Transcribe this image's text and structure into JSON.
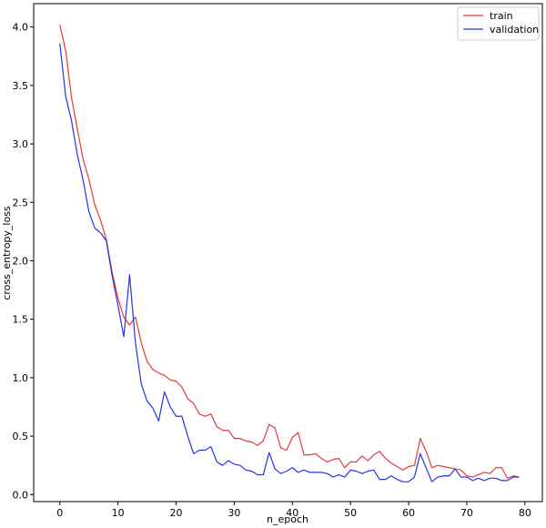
{
  "chart_data": {
    "type": "line",
    "title": "",
    "xlabel": "n_epoch",
    "ylabel": "cross_entropy_loss",
    "xlim": [
      -4.5,
      83
    ],
    "ylim": [
      -0.06,
      4.2
    ],
    "xticks": [
      0,
      10,
      20,
      30,
      40,
      50,
      60,
      70,
      80
    ],
    "yticks": [
      0.0,
      0.5,
      1.0,
      1.5,
      2.0,
      2.5,
      3.0,
      3.5,
      4.0
    ],
    "grid": false,
    "legend_position": "top-right",
    "x": [
      0,
      1,
      2,
      3,
      4,
      5,
      6,
      7,
      8,
      9,
      10,
      11,
      12,
      13,
      14,
      15,
      16,
      17,
      18,
      19,
      20,
      21,
      22,
      23,
      24,
      25,
      26,
      27,
      28,
      29,
      30,
      31,
      32,
      33,
      34,
      35,
      36,
      37,
      38,
      39,
      40,
      41,
      42,
      43,
      44,
      45,
      46,
      47,
      48,
      49,
      50,
      51,
      52,
      53,
      54,
      55,
      56,
      57,
      58,
      59,
      60,
      61,
      62,
      63,
      64,
      65,
      66,
      67,
      68,
      69,
      70,
      71,
      72,
      73,
      74,
      75,
      76,
      77,
      78,
      79
    ],
    "series": [
      {
        "name": "train",
        "color": "#e8383d",
        "values": [
          4.02,
          3.8,
          3.4,
          3.13,
          2.87,
          2.7,
          2.48,
          2.35,
          2.18,
          1.9,
          1.68,
          1.52,
          1.45,
          1.52,
          1.3,
          1.14,
          1.07,
          1.04,
          1.02,
          0.98,
          0.97,
          0.92,
          0.82,
          0.78,
          0.69,
          0.67,
          0.69,
          0.58,
          0.55,
          0.55,
          0.48,
          0.48,
          0.46,
          0.45,
          0.42,
          0.46,
          0.6,
          0.57,
          0.4,
          0.38,
          0.49,
          0.53,
          0.34,
          0.34,
          0.35,
          0.31,
          0.28,
          0.3,
          0.31,
          0.23,
          0.28,
          0.28,
          0.33,
          0.29,
          0.34,
          0.37,
          0.31,
          0.27,
          0.24,
          0.21,
          0.24,
          0.25,
          0.48,
          0.37,
          0.23,
          0.25,
          0.24,
          0.23,
          0.22,
          0.21,
          0.16,
          0.15,
          0.17,
          0.19,
          0.18,
          0.23,
          0.23,
          0.14,
          0.16,
          0.15
        ]
      },
      {
        "name": "validation",
        "color": "#2634e0",
        "values": [
          3.86,
          3.41,
          3.2,
          2.91,
          2.69,
          2.42,
          2.28,
          2.24,
          2.17,
          1.87,
          1.62,
          1.35,
          1.88,
          1.3,
          0.95,
          0.8,
          0.74,
          0.63,
          0.88,
          0.75,
          0.67,
          0.67,
          0.5,
          0.35,
          0.38,
          0.38,
          0.41,
          0.28,
          0.25,
          0.29,
          0.26,
          0.25,
          0.21,
          0.2,
          0.17,
          0.17,
          0.36,
          0.22,
          0.18,
          0.2,
          0.23,
          0.19,
          0.21,
          0.19,
          0.19,
          0.19,
          0.18,
          0.15,
          0.17,
          0.15,
          0.21,
          0.2,
          0.18,
          0.2,
          0.21,
          0.13,
          0.13,
          0.16,
          0.13,
          0.11,
          0.11,
          0.15,
          0.35,
          0.23,
          0.11,
          0.15,
          0.16,
          0.16,
          0.22,
          0.15,
          0.15,
          0.12,
          0.14,
          0.12,
          0.14,
          0.14,
          0.12,
          0.12,
          0.15,
          0.15
        ]
      }
    ]
  }
}
